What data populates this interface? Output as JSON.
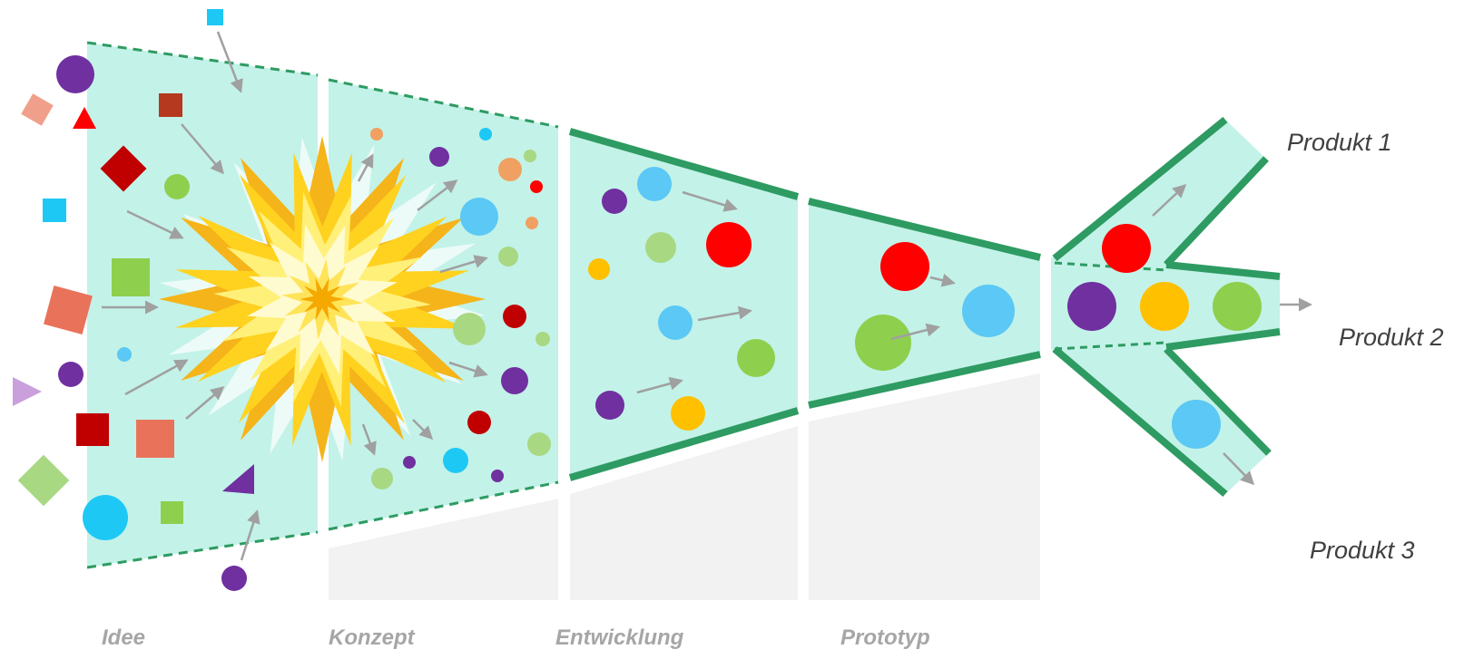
{
  "stages": [
    "Idee",
    "Konzept",
    "Entwicklung",
    "Prototyp"
  ],
  "products": [
    "Produkt 1",
    "Produkt 2",
    "Produkt 3"
  ]
}
